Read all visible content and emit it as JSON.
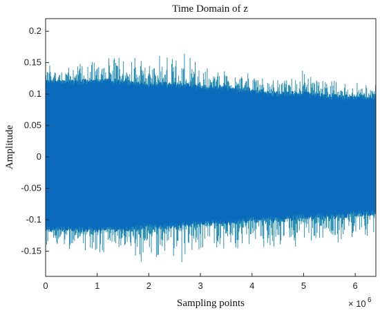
{
  "chart_data": {
    "type": "line",
    "title": "Time Domain of z",
    "xlabel": "Sampling  points",
    "ylabel": "Amplitude",
    "x_exponent_label": "× 10",
    "x_exponent_power": "6",
    "xlim": [
      0,
      6.4
    ],
    "ylim": [
      -0.19,
      0.22
    ],
    "xticks": [
      0,
      1,
      2,
      3,
      4,
      5,
      6
    ],
    "xtick_labels": [
      "0",
      "1",
      "2",
      "3",
      "4",
      "5",
      "6"
    ],
    "yticks": [
      -0.15,
      -0.1,
      -0.05,
      0,
      0.05,
      0.1,
      0.15,
      0.2
    ],
    "ytick_labels": [
      "-0.15",
      "-0.1",
      "-0.05",
      "0",
      "0.05",
      "0.1",
      "0.15",
      "0.2"
    ],
    "grid": false,
    "series": [
      {
        "color": "#0a6bbd",
        "spike_color": "#2a8fb5",
        "envelope": {
          "x": [
            0,
            0.5,
            1,
            1.5,
            2,
            2.5,
            3,
            3.5,
            4,
            4.5,
            5,
            5.5,
            6,
            6.4
          ],
          "core_upper": [
            0.12,
            0.12,
            0.12,
            0.12,
            0.115,
            0.115,
            0.11,
            0.11,
            0.105,
            0.1,
            0.1,
            0.095,
            0.095,
            0.095
          ],
          "core_lower": [
            -0.115,
            -0.115,
            -0.115,
            -0.115,
            -0.11,
            -0.11,
            -0.105,
            -0.105,
            -0.1,
            -0.1,
            -0.095,
            -0.095,
            -0.09,
            -0.09
          ],
          "peak_upper": [
            0.15,
            0.15,
            0.16,
            0.17,
            0.16,
            0.18,
            0.15,
            0.14,
            0.14,
            0.13,
            0.14,
            0.13,
            0.12,
            0.12
          ],
          "peak_lower": [
            -0.15,
            -0.15,
            -0.17,
            -0.16,
            -0.18,
            -0.18,
            -0.16,
            -0.16,
            -0.15,
            -0.15,
            -0.15,
            -0.14,
            -0.14,
            -0.13
          ]
        }
      }
    ]
  }
}
